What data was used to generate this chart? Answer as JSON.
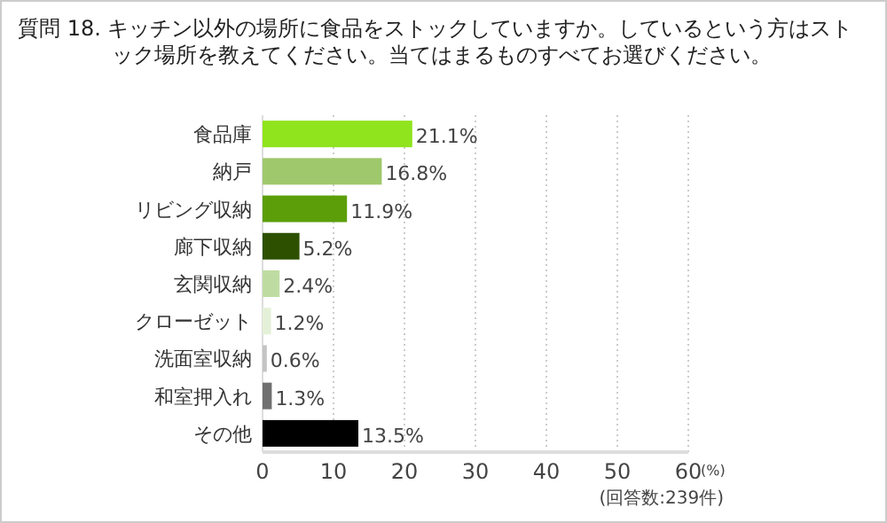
{
  "chart_data": {
    "type": "bar",
    "orientation": "horizontal",
    "title": "質問 18. キッチン以外の場所に食品をストックしていますか。しているという方はストック場所を教えてください。当てはまるものすべてお選びください。",
    "categories": [
      "食品庫",
      "納戸",
      "リビング収納",
      "廊下収納",
      "玄関収納",
      "クローゼット",
      "洗面室収納",
      "和室押入れ",
      "その他"
    ],
    "values": [
      21.1,
      16.8,
      11.9,
      5.2,
      2.4,
      1.2,
      0.6,
      1.3,
      13.5
    ],
    "colors": [
      "#90e41e",
      "#9fc86c",
      "#5c9e0a",
      "#2d5000",
      "#bedca2",
      "#e4f1d8",
      "#c4c4c4",
      "#707070",
      "#000000"
    ],
    "value_labels": [
      "21.1%",
      "16.8%",
      "11.9%",
      "5.2%",
      "2.4%",
      "1.2%",
      "0.6%",
      "1.3%",
      "13.5%"
    ],
    "xlim": [
      0,
      60
    ],
    "xticks": [
      0,
      10,
      20,
      30,
      40,
      50,
      60
    ],
    "xlabel": "(%)",
    "grid": "x",
    "annotations": [
      "(回答数:239件)"
    ]
  }
}
